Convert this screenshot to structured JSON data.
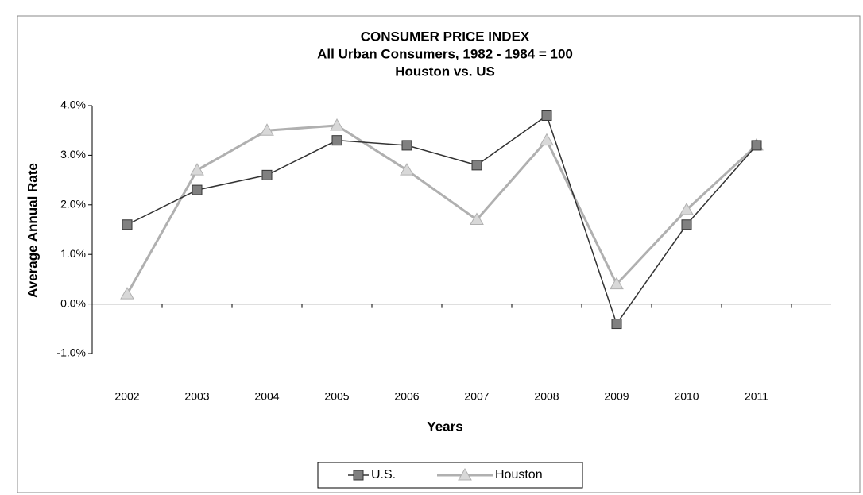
{
  "chart_data": {
    "type": "line",
    "title": "CONSUMER PRICE INDEX",
    "subtitle": [
      "All Urban Consumers, 1982 - 1984 = 100",
      "Houston vs. US"
    ],
    "x_label": "Years",
    "y_label": "Average Annual Rate",
    "categories": [
      "2002",
      "2003",
      "2004",
      "2005",
      "2006",
      "2007",
      "2008",
      "2009",
      "2010",
      "2011"
    ],
    "series": [
      {
        "name": "U.S.",
        "color": "#333333",
        "marker": "square",
        "values": [
          1.6,
          2.3,
          2.6,
          3.3,
          3.2,
          2.8,
          3.8,
          -0.4,
          1.6,
          3.2
        ]
      },
      {
        "name": "Houston",
        "color": "#b0b0b0",
        "marker": "triangle",
        "values": [
          0.2,
          2.7,
          3.5,
          3.6,
          2.7,
          1.7,
          3.3,
          0.4,
          1.9,
          3.2
        ]
      }
    ],
    "ylim": [
      -1,
      4
    ],
    "yticks": [
      {
        "value": -1,
        "label": "-1.0%"
      },
      {
        "value": 0,
        "label": "0.0%"
      },
      {
        "value": 1,
        "label": "1.0%"
      },
      {
        "value": 2,
        "label": "2.0%"
      },
      {
        "value": 3,
        "label": "3.0%"
      },
      {
        "value": 4,
        "label": "4.0%"
      }
    ],
    "legend": "bottom"
  }
}
